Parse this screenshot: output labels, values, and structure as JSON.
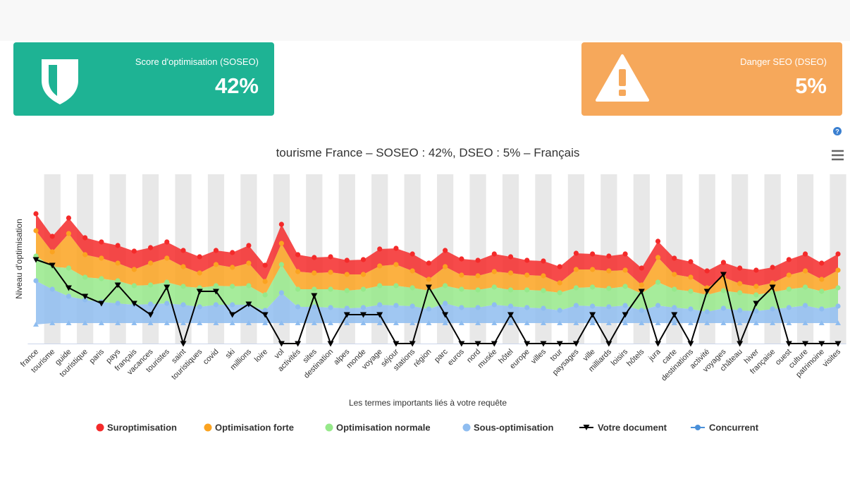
{
  "cards": [
    {
      "label": "Score d'optimisation (SOSEO)",
      "value": "42%"
    },
    {
      "label": "Danger SEO (DSEO)",
      "value": "5%"
    }
  ],
  "chart_data": {
    "type": "arearange",
    "title": "tourisme France – SOSEO : 42%, DSEO : 5% – Français",
    "x_label": "Les termes importants liés à votre requête",
    "y_label": "Niveau d'optimisation",
    "ylim": [
      0,
      240
    ],
    "categories": [
      "france",
      "tourisme",
      "guide",
      "touristique",
      "paris",
      "pays",
      "français",
      "vacances",
      "touristes",
      "saint",
      "touristiques",
      "covid",
      "ski",
      "millions",
      "loire",
      "vol",
      "activités",
      "sites",
      "destination",
      "alpes",
      "monde",
      "voyage",
      "séjour",
      "stations",
      "région",
      "parc",
      "euros",
      "nord",
      "musée",
      "hôtel",
      "europe",
      "villes",
      "tour",
      "paysages",
      "ville",
      "milliards",
      "loisirs",
      "hôtels",
      "jura",
      "carte",
      "destinations",
      "activité",
      "voyages",
      "château",
      "hiver",
      "française",
      "ouest",
      "culture",
      "patrimoine",
      "visites"
    ],
    "series": [
      {
        "name": "Suroptimisation",
        "color": "#f42a2a",
        "values": [
          184,
          152,
          178,
          150,
          144,
          139,
          131,
          136,
          144,
          132,
          123,
          132,
          129,
          139,
          111,
          169,
          126,
          122,
          123,
          118,
          119,
          134,
          135,
          127,
          114,
          132,
          120,
          118,
          127,
          123,
          118,
          117,
          109,
          128,
          127,
          124,
          127,
          107,
          145,
          121,
          116,
          103,
          115,
          107,
          104,
          108,
          119,
          127,
          114,
          127
        ]
      },
      {
        "name": "Optimisation forte",
        "color": "#fba320",
        "values": [
          160,
          130,
          156,
          126,
          121,
          114,
          105,
          114,
          121,
          109,
          100,
          112,
          108,
          114,
          88,
          142,
          102,
          100,
          101,
          98,
          98,
          110,
          112,
          103,
          91,
          109,
          97,
          96,
          102,
          100,
          97,
          96,
          86,
          105,
          105,
          103,
          104,
          83,
          122,
          98,
          94,
          79,
          94,
          85,
          81,
          86,
          97,
          103,
          91,
          104
        ]
      },
      {
        "name": "Optimisation normale",
        "color": "#96e98a",
        "values": [
          124,
          109,
          107,
          94,
          92,
          89,
          82,
          83,
          87,
          81,
          79,
          82,
          81,
          82,
          69,
          112,
          77,
          77,
          77,
          75,
          77,
          82,
          82,
          79,
          75,
          82,
          77,
          76,
          80,
          76,
          76,
          75,
          72,
          79,
          80,
          78,
          81,
          71,
          87,
          77,
          74,
          69,
          75,
          72,
          69,
          73,
          77,
          80,
          74,
          79
        ]
      },
      {
        "name": "Sous-optimisation",
        "color": "#8fbdf0",
        "values": [
          89,
          77,
          67,
          62,
          59,
          57,
          55,
          56,
          57,
          55,
          52,
          55,
          55,
          55,
          47,
          72,
          52,
          52,
          51,
          50,
          51,
          55,
          54,
          53,
          49,
          57,
          51,
          51,
          55,
          53,
          51,
          50,
          47,
          54,
          53,
          52,
          54,
          47,
          54,
          51,
          49,
          45,
          50,
          47,
          46,
          49,
          51,
          54,
          49,
          53
        ],
        "low": [
          27,
          29,
          29,
          29,
          29,
          29,
          29,
          29,
          29,
          29,
          29,
          29,
          29,
          29,
          29,
          29,
          29,
          29,
          29,
          29,
          29,
          29,
          29,
          29,
          29,
          29,
          29,
          29,
          29,
          29,
          29,
          29,
          29,
          29,
          29,
          29,
          29,
          29,
          29,
          29,
          29,
          29,
          29,
          29,
          29,
          29,
          29,
          29,
          29,
          29
        ]
      },
      {
        "name": "Votre document",
        "color": "#000000",
        "values": [
          119,
          111,
          79,
          67,
          57,
          83,
          57,
          41,
          80,
          0,
          74,
          74,
          41,
          56,
          41,
          0,
          0,
          68,
          0,
          41,
          41,
          41,
          0,
          0,
          80,
          41,
          0,
          0,
          0,
          41,
          0,
          0,
          0,
          0,
          41,
          0,
          41,
          74,
          0,
          41,
          0,
          74,
          98,
          0,
          57,
          80,
          0,
          0,
          0,
          0
        ]
      },
      {
        "name": "Concurrent",
        "color": "#4a90d9"
      }
    ]
  }
}
